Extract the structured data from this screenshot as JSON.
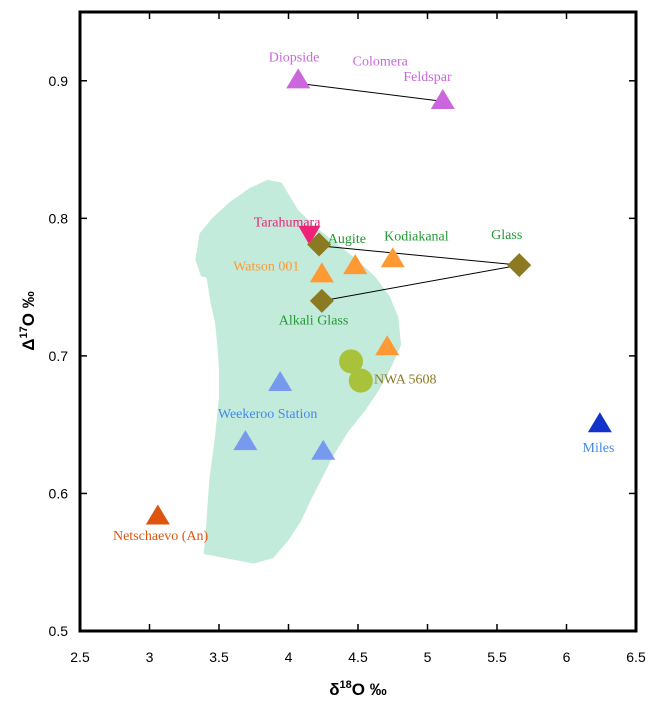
{
  "chart_data": {
    "type": "scatter",
    "title": "",
    "xlabel": {
      "prefix": "δ",
      "sup": "18",
      "suffix": "O ‰"
    },
    "ylabel": {
      "prefix": "Δ",
      "sup": "17",
      "suffix": "O ‰"
    },
    "xlim": [
      2.5,
      6.5
    ],
    "ylim": [
      0.5,
      0.95
    ],
    "x_ticks": [
      "2.5",
      "3",
      "3.5",
      "4",
      "4.5",
      "5",
      "5.5",
      "6",
      "6.5"
    ],
    "y_ticks": [
      "0.5",
      "0.6",
      "0.7",
      "0.8",
      "0.9"
    ],
    "grid": false,
    "region": {
      "color": "#c3ebdc",
      "polygon": [
        [
          3.41,
          0.757
        ],
        [
          3.44,
          0.738
        ],
        [
          3.47,
          0.725
        ],
        [
          3.49,
          0.706
        ],
        [
          3.5,
          0.69
        ],
        [
          3.5,
          0.67
        ],
        [
          3.47,
          0.64
        ],
        [
          3.43,
          0.61
        ],
        [
          3.41,
          0.58
        ],
        [
          3.4,
          0.566
        ],
        [
          3.39,
          0.556
        ],
        [
          3.75,
          0.549
        ],
        [
          3.89,
          0.553
        ],
        [
          4.0,
          0.566
        ],
        [
          4.09,
          0.58
        ],
        [
          4.16,
          0.595
        ],
        [
          4.25,
          0.613
        ],
        [
          4.32,
          0.627
        ],
        [
          4.43,
          0.645
        ],
        [
          4.55,
          0.66
        ],
        [
          4.65,
          0.675
        ],
        [
          4.74,
          0.692
        ],
        [
          4.81,
          0.708
        ],
        [
          4.79,
          0.728
        ],
        [
          4.73,
          0.743
        ],
        [
          4.62,
          0.758
        ],
        [
          4.48,
          0.771
        ],
        [
          4.33,
          0.783
        ],
        [
          4.18,
          0.795
        ],
        [
          4.07,
          0.806
        ],
        [
          3.95,
          0.826
        ],
        [
          3.85,
          0.828
        ],
        [
          3.72,
          0.822
        ],
        [
          3.58,
          0.812
        ],
        [
          3.45,
          0.8
        ],
        [
          3.36,
          0.789
        ],
        [
          3.33,
          0.77
        ],
        [
          3.37,
          0.758
        ]
      ]
    },
    "points": [
      {
        "x": 4.07,
        "y": 0.901,
        "marker": "triangle-up",
        "color": "#cc66dd"
      },
      {
        "x": 5.11,
        "y": 0.886,
        "marker": "triangle-up",
        "color": "#cc66dd"
      },
      {
        "x": 4.15,
        "y": 0.788,
        "marker": "triangle-down",
        "color": "#ee2277"
      },
      {
        "x": 4.22,
        "y": 0.781,
        "marker": "diamond",
        "color": "#8b7a22"
      },
      {
        "x": 4.24,
        "y": 0.74,
        "marker": "diamond",
        "color": "#8b7a22"
      },
      {
        "x": 5.66,
        "y": 0.766,
        "marker": "diamond",
        "color": "#8b7a22"
      },
      {
        "x": 4.24,
        "y": 0.76,
        "marker": "triangle-up",
        "color": "#ff9933"
      },
      {
        "x": 4.48,
        "y": 0.766,
        "marker": "triangle-up",
        "color": "#ff9933"
      },
      {
        "x": 4.75,
        "y": 0.771,
        "marker": "triangle-up",
        "color": "#ff9933"
      },
      {
        "x": 4.71,
        "y": 0.707,
        "marker": "triangle-up",
        "color": "#ff9933"
      },
      {
        "x": 4.45,
        "y": 0.696,
        "marker": "circle",
        "color": "#a8c23c"
      },
      {
        "x": 4.52,
        "y": 0.682,
        "marker": "circle",
        "color": "#a8c23c"
      },
      {
        "x": 3.94,
        "y": 0.681,
        "marker": "triangle-up",
        "color": "#7799ee"
      },
      {
        "x": 3.69,
        "y": 0.638,
        "marker": "triangle-up",
        "color": "#7799ee"
      },
      {
        "x": 4.25,
        "y": 0.631,
        "marker": "triangle-up",
        "color": "#7799ee"
      },
      {
        "x": 3.06,
        "y": 0.584,
        "marker": "triangle-up",
        "color": "#dd5511"
      },
      {
        "x": 6.24,
        "y": 0.651,
        "marker": "triangle-up",
        "color": "#1133cc"
      }
    ],
    "lines": [
      [
        [
          4.08,
          0.898
        ],
        [
          5.11,
          0.885
        ]
      ],
      [
        [
          4.22,
          0.78
        ],
        [
          5.66,
          0.766
        ],
        [
          4.24,
          0.74
        ]
      ]
    ],
    "annotations": [
      {
        "text": "Diopside",
        "x": 4.04,
        "y": 0.914,
        "color": "#cc66dd",
        "anchor": "middle"
      },
      {
        "text": "Colomera",
        "x": 4.66,
        "y": 0.911,
        "color": "#cc66dd",
        "anchor": "middle"
      },
      {
        "text": "Feldspar",
        "x": 5.0,
        "y": 0.9,
        "color": "#cc66dd",
        "anchor": "middle"
      },
      {
        "text": "Tarahumara",
        "x": 3.99,
        "y": 0.794,
        "color": "#ee2277",
        "anchor": "middle"
      },
      {
        "text": "Augite",
        "x": 4.42,
        "y": 0.782,
        "color": "#229933",
        "anchor": "middle"
      },
      {
        "text": "Kodiakanal",
        "x": 4.92,
        "y": 0.784,
        "color": "#229933",
        "anchor": "middle"
      },
      {
        "text": "Glass",
        "x": 5.57,
        "y": 0.785,
        "color": "#229933",
        "anchor": "middle"
      },
      {
        "text": "Watson 001",
        "x": 3.84,
        "y": 0.762,
        "color": "#ff9933",
        "anchor": "middle"
      },
      {
        "text": "Alkali Glass",
        "x": 4.18,
        "y": 0.723,
        "color": "#229933",
        "anchor": "middle"
      },
      {
        "text": "NWA 5608",
        "x": 4.84,
        "y": 0.68,
        "color": "#8b7a22",
        "anchor": "middle"
      },
      {
        "text": "Weekeroo Station",
        "x": 3.85,
        "y": 0.655,
        "color": "#4488ee",
        "anchor": "middle"
      },
      {
        "text": "Miles",
        "x": 6.23,
        "y": 0.63,
        "color": "#4488ee",
        "anchor": "middle"
      },
      {
        "text": "Netschaevo (An)",
        "x": 3.08,
        "y": 0.566,
        "color": "#dd5511",
        "anchor": "middle"
      }
    ]
  }
}
